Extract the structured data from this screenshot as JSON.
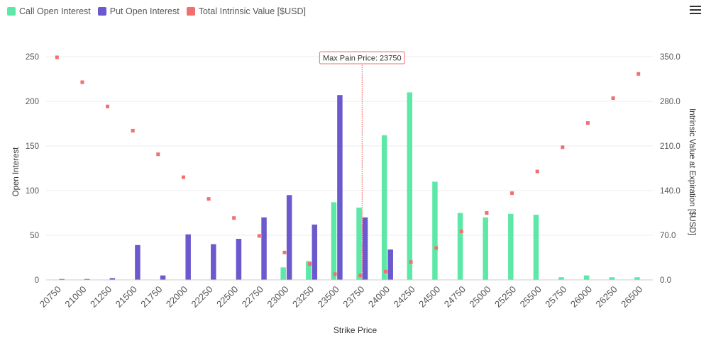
{
  "legend": [
    {
      "label": "Call Open Interest",
      "color": "#5ee8a8"
    },
    {
      "label": "Put Open Interest",
      "color": "#6a5acd"
    },
    {
      "label": "Total Intrinsic Value [$USD]",
      "color": "#f07070"
    }
  ],
  "menu_icon": "hamburger-menu-icon",
  "chart_data": {
    "type": "bar",
    "xlabel": "Strike Price",
    "ylabel": "Open Interest",
    "y2label": "Intrinsic Value at Expiration [$USD]",
    "categories": [
      "20750",
      "21000",
      "21250",
      "21500",
      "21750",
      "22000",
      "22250",
      "22500",
      "22750",
      "23000",
      "23250",
      "23500",
      "23750",
      "24000",
      "24250",
      "24500",
      "24750",
      "25000",
      "25250",
      "25500",
      "25750",
      "26000",
      "26250",
      "26500"
    ],
    "ylim": [
      0,
      250
    ],
    "yticks": [
      "0",
      "50",
      "100",
      "150",
      "200",
      "250"
    ],
    "y2lim": [
      0,
      350
    ],
    "y2ticks": [
      "0.0",
      "70.0",
      "140.0",
      "210.0",
      "280.0",
      "350.0"
    ],
    "grid": true,
    "series": [
      {
        "name": "Call Open Interest",
        "type": "bar",
        "axis": "left",
        "color": "#5ee8a8",
        "values": [
          0,
          0,
          0,
          0,
          0,
          0,
          0,
          0,
          0,
          14,
          21,
          87,
          81,
          162,
          210,
          110,
          75,
          70,
          74,
          73,
          3,
          5,
          3,
          3
        ]
      },
      {
        "name": "Put Open Interest",
        "type": "bar",
        "axis": "left",
        "color": "#6a5acd",
        "values": [
          1,
          1,
          2,
          39,
          5,
          51,
          40,
          46,
          70,
          95,
          62,
          207,
          70,
          34,
          0,
          0,
          0,
          0,
          0,
          0,
          0,
          0,
          0,
          0
        ]
      },
      {
        "name": "Total Intrinsic Value [$USD]",
        "type": "scatter",
        "axis": "right",
        "color": "#f07070",
        "values": [
          349,
          310,
          272,
          234,
          197,
          161,
          127,
          97,
          69,
          43,
          25,
          9,
          7,
          13,
          28,
          50,
          76,
          105,
          136,
          170,
          208,
          246,
          285,
          323
        ]
      }
    ],
    "annotation": {
      "label": "Max Pain Price: 23750",
      "category": "23750"
    }
  }
}
